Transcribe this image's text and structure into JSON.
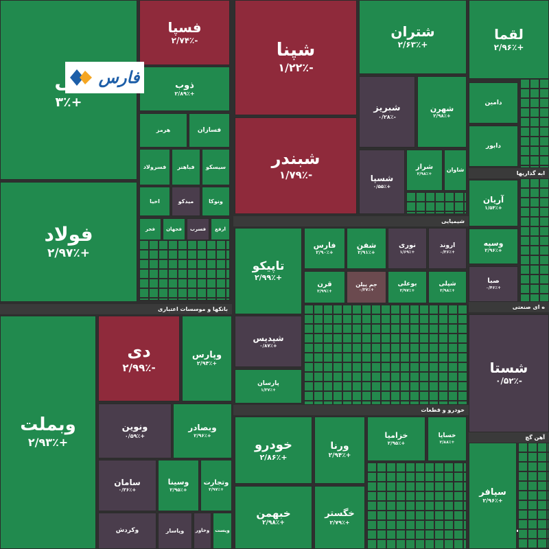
{
  "logo": "فارس",
  "sectors": [
    "بانکها و موسسات اعتباری",
    "شیمیایی",
    "خودرو و قطعات",
    "ه ای صنعتی",
    "ابه گذاریها",
    "آهن گچ"
  ],
  "tiles": [
    {
      "name": "لی",
      "change": "+۳٪"
    },
    {
      "name": "فولاد",
      "change": "+۲/۹۷٪"
    },
    {
      "name": "وبملت",
      "change": "+۲/۹۳٪"
    },
    {
      "name": "دی",
      "change": "-۲/۹۹٪"
    },
    {
      "name": "وپارس",
      "change": "+۲/۹۴٪"
    },
    {
      "name": "ونوین",
      "change": "+۰/۵۹٪"
    },
    {
      "name": "وبصادر",
      "change": "+۲/۹۶٪"
    },
    {
      "name": "سامان",
      "change": "+۰/۳۶٪"
    },
    {
      "name": "وسینا",
      "change": "+۲/۹۵٪"
    },
    {
      "name": "وتجارت",
      "change": "+۲/۹۷٪"
    },
    {
      "name": "وکردش"
    },
    {
      "name": "وپاسار"
    },
    {
      "name": "وخاور"
    },
    {
      "name": "وپست"
    },
    {
      "name": "فسپا",
      "change": "-۲/۷۴٪"
    },
    {
      "name": "ذوب",
      "change": "+۲/۸۹٪"
    },
    {
      "name": "هرمز"
    },
    {
      "name": "فسازان"
    },
    {
      "name": "فسرولاد"
    },
    {
      "name": "فباهنر"
    },
    {
      "name": "سیسکو"
    },
    {
      "name": "اخیا"
    },
    {
      "name": "میدکو"
    },
    {
      "name": "ونوکا"
    },
    {
      "name": "فجر"
    },
    {
      "name": "فجهان"
    },
    {
      "name": "فسرب"
    },
    {
      "name": "ارفع"
    },
    {
      "name": "شپنا",
      "change": "-۱/۲۲٪"
    },
    {
      "name": "شبندر",
      "change": "-۱/۷۹٪"
    },
    {
      "name": "تاپیکو",
      "change": "+۲/۹۹٪"
    },
    {
      "name": "شپدیس",
      "change": "+۰/۸۷٪"
    },
    {
      "name": "پارسان",
      "change": "+۱/۳۷٪"
    },
    {
      "name": "فارس",
      "change": "+۲/۹۰٪"
    },
    {
      "name": "شفن",
      "change": "+۲/۹۱٪"
    },
    {
      "name": "نوری",
      "change": "+۱/۶۹٪"
    },
    {
      "name": "اروند",
      "change": "+۰/۳۶٪"
    },
    {
      "name": "قرن",
      "change": "+۲/۹۹٪"
    },
    {
      "name": "جم پیلن",
      "change": "+۰/۳۷٪"
    },
    {
      "name": "بوعلی",
      "change": "+۲/۹۷٪"
    },
    {
      "name": "شپلی",
      "change": "+۲/۹۸٪"
    },
    {
      "name": "شتران",
      "change": "+۲/۶۳٪"
    },
    {
      "name": "لقما",
      "change": "+۲/۹۶٪"
    },
    {
      "name": "شبریز",
      "change": "-۰/۲۸٪"
    },
    {
      "name": "شهرن",
      "change": "+۲/۹۸٪"
    },
    {
      "name": "شسپا",
      "change": "+۰/۵۵٪"
    },
    {
      "name": "شراز",
      "change": "+۲/۹۸٪"
    },
    {
      "name": "شاوان"
    },
    {
      "name": "شستا",
      "change": "-۰/۵۲٪"
    },
    {
      "name": "خودرو",
      "change": "+۲/۸۶٪"
    },
    {
      "name": "خبهمن",
      "change": "+۲/۹۸٪"
    },
    {
      "name": "ورنا",
      "change": "+۲/۹۴٪"
    },
    {
      "name": "خگستر",
      "change": "+۲/۷۹٪"
    },
    {
      "name": "خزامیا",
      "change": "+۲/۹۵٪"
    },
    {
      "name": "خساپا",
      "change": "+۲/۸۸٪"
    },
    {
      "name": "سپافر",
      "change": "+۲/۹۶٪"
    },
    {
      "name": "آریان",
      "change": "+۱/۵۴٪"
    },
    {
      "name": "وسپه",
      "change": "+۲/۹۶٪"
    },
    {
      "name": "صبا",
      "change": "+۰/۴۶٪"
    },
    {
      "name": "دامین"
    },
    {
      "name": "دابور"
    }
  ]
}
